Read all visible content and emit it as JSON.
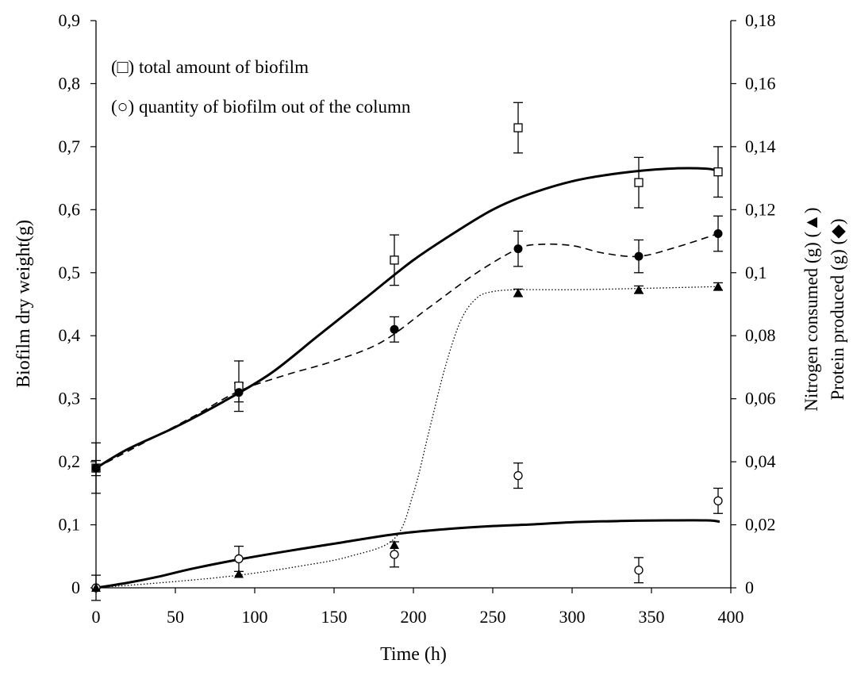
{
  "chart_data": {
    "type": "scatter",
    "xlabel": "Time (h)",
    "ylabel": "Biofilm dry weight(g)",
    "y2label_1": "Nitrogen consumed (g) (▲)",
    "y2label_2": "Protein produced (g) (◆)",
    "xlim": [
      0,
      400
    ],
    "ylim": [
      0,
      0.9
    ],
    "y2lim": [
      0,
      0.18
    ],
    "grid": false,
    "xticks": [
      "0",
      "50",
      "100",
      "150",
      "200",
      "250",
      "300",
      "350",
      "400"
    ],
    "yticks": [
      "0",
      "0,1",
      "0,2",
      "0,3",
      "0,4",
      "0,5",
      "0,6",
      "0,7",
      "0,8",
      "0,9"
    ],
    "y2ticks": [
      "0",
      "0,02",
      "0,04",
      "0,06",
      "0,08",
      "0,1",
      "0,12",
      "0,14",
      "0,16",
      "0,18"
    ],
    "legend": {
      "position": "top-left",
      "entries": [
        "(□) total amount of biofilm",
        "(○) quantity of biofilm out of the column"
      ]
    },
    "series": [
      {
        "marker": "open-square",
        "axis": "left",
        "x": [
          0,
          90,
          188,
          266,
          342,
          392
        ],
        "y": [
          0.19,
          0.32,
          0.52,
          0.73,
          0.643,
          0.66
        ],
        "err": [
          0.04,
          0.04,
          0.04,
          0.04,
          0.04,
          0.04
        ]
      },
      {
        "marker": "filled-circle",
        "axis": "left",
        "x": [
          0,
          90,
          188,
          266,
          342,
          392
        ],
        "y": [
          0.19,
          0.31,
          0.41,
          0.538,
          0.526,
          0.562
        ],
        "err": [
          0.012,
          0.015,
          0.02,
          0.028,
          0.026,
          0.028
        ]
      },
      {
        "marker": "open-circle",
        "axis": "left",
        "x": [
          0,
          90,
          188,
          266,
          342,
          392
        ],
        "y": [
          0.0,
          0.046,
          0.053,
          0.178,
          0.028,
          0.138
        ],
        "err": [
          0.02,
          0.02,
          0.02,
          0.02,
          0.02,
          0.02
        ]
      },
      {
        "marker": "filled-triangle",
        "axis": "right",
        "x": [
          0,
          90,
          188,
          266,
          342,
          392
        ],
        "y": [
          0.0,
          0.0044,
          0.0136,
          0.0936,
          0.0946,
          0.0956
        ],
        "err": [
          0,
          0,
          0,
          0.0012,
          0.0012,
          0.0012
        ]
      }
    ],
    "curves": [
      {
        "style": "solid-thick",
        "axis": "left",
        "x": [
          0,
          20,
          50,
          80,
          110,
          140,
          170,
          200,
          230,
          250,
          270,
          300,
          330,
          360,
          385,
          393
        ],
        "y": [
          0.19,
          0.22,
          0.255,
          0.295,
          0.34,
          0.4,
          0.46,
          0.52,
          0.57,
          0.6,
          0.622,
          0.645,
          0.658,
          0.665,
          0.665,
          0.66
        ]
      },
      {
        "style": "dashed",
        "axis": "left",
        "x": [
          0,
          30,
          60,
          90,
          120,
          150,
          180,
          210,
          240,
          266,
          280,
          300,
          320,
          342,
          365,
          392
        ],
        "y": [
          0.19,
          0.23,
          0.27,
          0.312,
          0.338,
          0.36,
          0.39,
          0.445,
          0.5,
          0.538,
          0.545,
          0.543,
          0.531,
          0.526,
          0.54,
          0.562
        ]
      },
      {
        "style": "solid-thick",
        "axis": "left",
        "x": [
          0,
          20,
          40,
          60,
          90,
          120,
          150,
          188,
          220,
          250,
          270,
          300,
          330,
          360,
          385,
          393
        ],
        "y": [
          0.0,
          0.008,
          0.018,
          0.03,
          0.045,
          0.058,
          0.07,
          0.085,
          0.093,
          0.098,
          0.1,
          0.104,
          0.106,
          0.107,
          0.107,
          0.105
        ]
      },
      {
        "style": "dotted",
        "axis": "right",
        "x": [
          0,
          50,
          90,
          130,
          160,
          188,
          200,
          210,
          220,
          230,
          240,
          250,
          266,
          300,
          342,
          392
        ],
        "y": [
          0.0,
          0.002,
          0.004,
          0.007,
          0.01,
          0.0156,
          0.03,
          0.05,
          0.07,
          0.085,
          0.092,
          0.094,
          0.0946,
          0.0946,
          0.095,
          0.0956
        ]
      }
    ]
  }
}
